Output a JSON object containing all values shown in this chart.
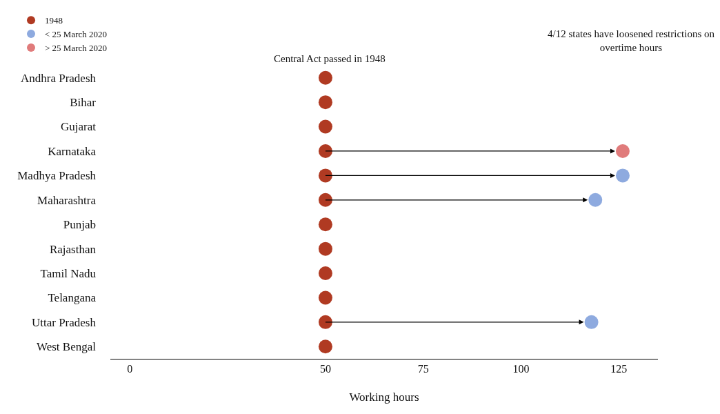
{
  "chart_data": {
    "type": "scatter",
    "xlabel": "Working hours",
    "categories": [
      "Andhra Pradesh",
      "Bihar",
      "Gujarat",
      "Karnataka",
      "Madhya Pradesh",
      "Maharashtra",
      "Punjab",
      "Rajasthan",
      "Tamil Nadu",
      "Telangana",
      "Uttar Pradesh",
      "West Bengal"
    ],
    "series": [
      {
        "name": "1948",
        "color": "#b03a22",
        "values": [
          50,
          50,
          50,
          50,
          50,
          50,
          50,
          50,
          50,
          50,
          50,
          50
        ]
      },
      {
        "name": "< 25 March 2020",
        "color": "#8eaadf",
        "values": [
          null,
          null,
          null,
          null,
          126,
          119,
          null,
          null,
          null,
          null,
          118,
          null
        ]
      },
      {
        "name": "> 25 March 2020",
        "color": "#e07b7b",
        "values": [
          null,
          null,
          null,
          126,
          null,
          null,
          null,
          null,
          null,
          null,
          null,
          null
        ]
      }
    ],
    "xlim": [
      -5,
      135
    ],
    "xticks": [
      0,
      50,
      75,
      100,
      125
    ],
    "annotations": [
      "Central Act passed in 1948",
      "4/12 states have loosened restrictions on overtime hours"
    ],
    "grid": false,
    "legend": "top left",
    "marker": "circle",
    "orientation": "horizontal"
  }
}
